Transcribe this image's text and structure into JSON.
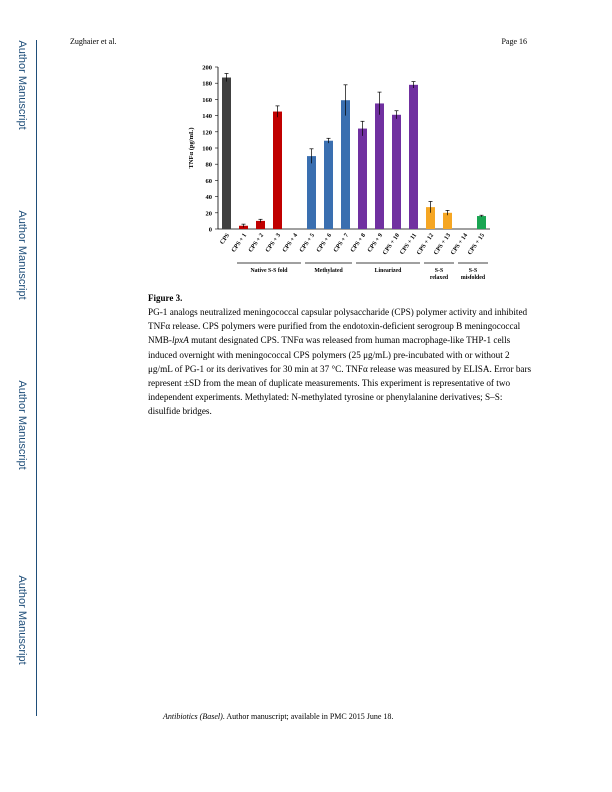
{
  "watermark": "Author Manuscript",
  "header": {
    "left": "Zughaier et al.",
    "right": "Page 16"
  },
  "figure": {
    "label": "Figure 3.",
    "caption_parts": [
      {
        "text": "PG-1 analogs neutralized meningococcal capsular polysaccharide (CPS) polymer activity and inhibited TNFα release. CPS polymers were purified from the endotoxin-deficient serogroup B meningococcal NMB-"
      },
      {
        "text": "lpxA",
        "italic": true
      },
      {
        "text": " mutant designated CPS. TNFα was released from human macrophage-like THP-1 cells induced overnight with meningococcal CPS polymers (25 μg/mL) pre-incubated with or without 2 μg/mL of PG-1 or its derivatives for 30 min at 37 °C. TNFα release was measured by ELISA. Error bars represent ±SD from the mean of duplicate measurements. This experiment is representative of two independent experiments. Methylated: N-methylated tyrosine or phenylalanine derivatives; S–S: disulfide bridges."
      }
    ]
  },
  "chart_data": {
    "type": "bar",
    "ylabel": "TNFα (pg/mL)",
    "ylim": [
      0,
      200
    ],
    "yticks": [
      0,
      20,
      40,
      60,
      80,
      100,
      120,
      140,
      160,
      180,
      200
    ],
    "categories": [
      "CPS",
      "CPS + 1",
      "CPS + 2",
      "CPS + 3",
      "CPS + 4",
      "CPS + 5",
      "CPS + 6",
      "CPS + 7",
      "CPS + 8",
      "CPS + 9",
      "CPS + 10",
      "CPS + 11",
      "CPS + 12",
      "CPS + 13",
      "CPS + 14",
      "CPS + 15"
    ],
    "values": [
      187,
      4,
      10,
      145,
      0,
      90,
      109,
      159,
      124,
      155,
      141,
      178,
      27,
      20,
      0,
      16
    ],
    "errors": [
      5,
      2,
      2,
      7,
      0,
      9,
      3,
      19,
      9,
      14,
      5,
      4,
      7,
      3,
      0,
      1
    ],
    "colors": [
      "#404040",
      "#c00000",
      "#c00000",
      "#c00000",
      "#c00000",
      "#3a6fb0",
      "#3a6fb0",
      "#3a6fb0",
      "#7030a0",
      "#7030a0",
      "#7030a0",
      "#7030a0",
      "#f5a623",
      "#f5a623",
      "#f5a623",
      "#1aa552"
    ],
    "groups": [
      {
        "label": "Native S-S fold",
        "from": 1,
        "to": 4
      },
      {
        "label": "Methylated",
        "from": 5,
        "to": 7
      },
      {
        "label": "Linearized",
        "from": 8,
        "to": 11
      },
      {
        "label": "S-S\nrelaxed",
        "from": 12,
        "to": 13
      },
      {
        "label": "S-S\nmisfolded",
        "from": 14,
        "to": 15
      }
    ]
  },
  "footer": {
    "journal": "Antibiotics (Basel)",
    "rest": ". Author manuscript; available in PMC 2015 June 18."
  }
}
